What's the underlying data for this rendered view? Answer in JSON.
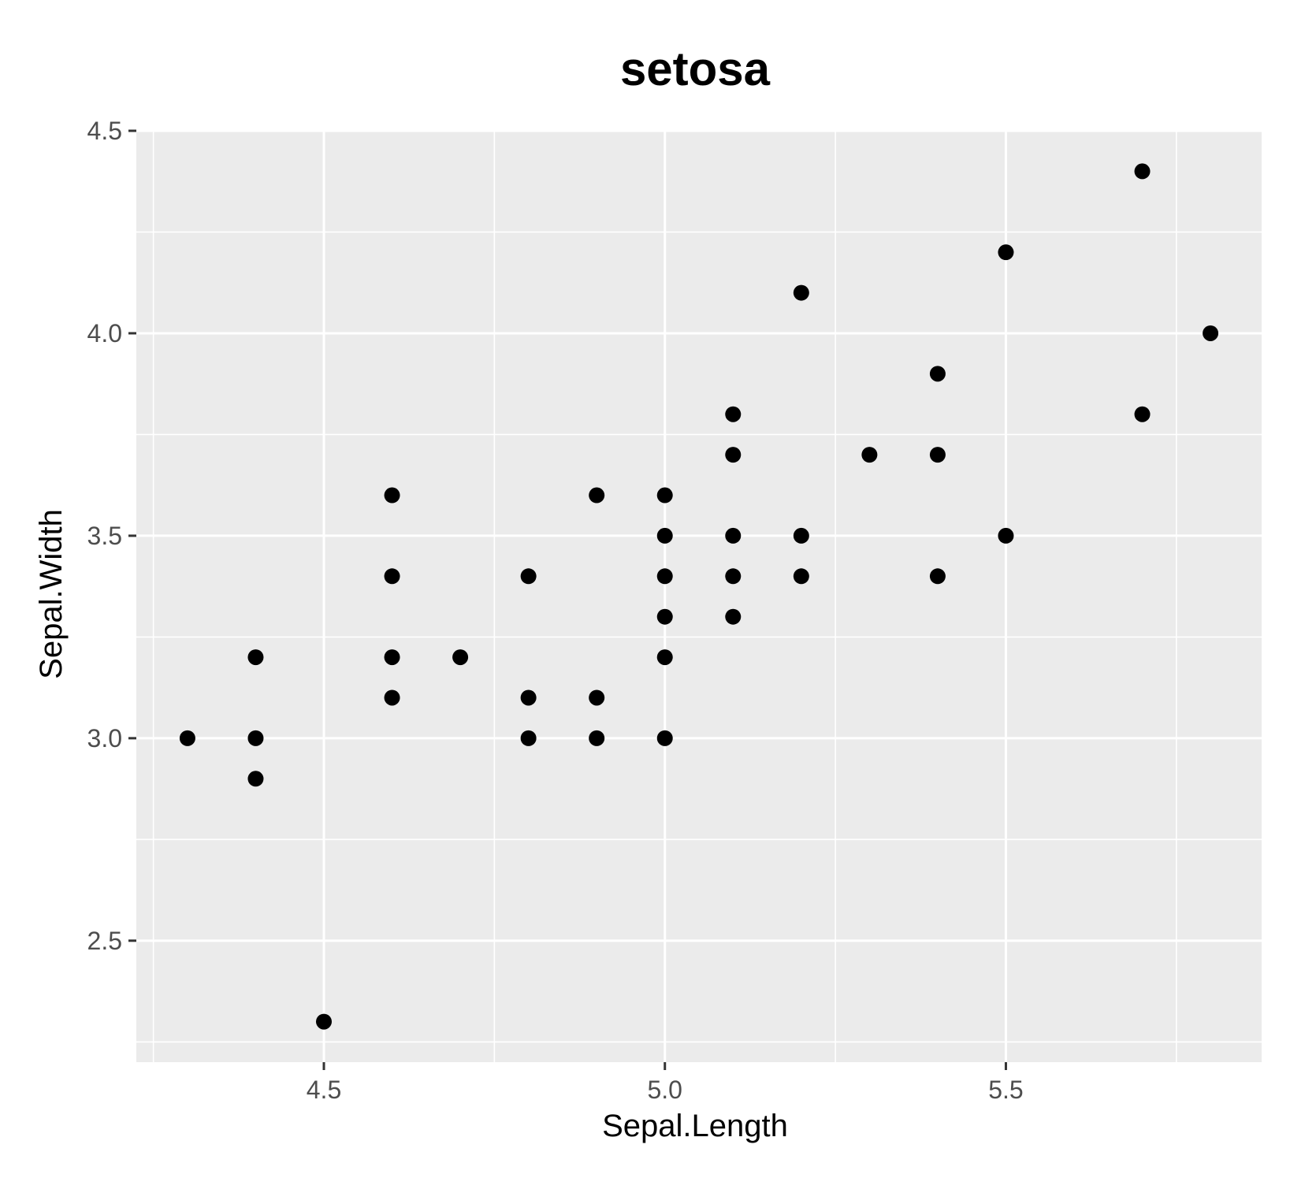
{
  "chart_data": {
    "type": "scatter",
    "title": "setosa",
    "xlabel": "Sepal.Length",
    "ylabel": "Sepal.Width",
    "xlim": [
      4.225,
      5.875
    ],
    "ylim": [
      2.2,
      4.5
    ],
    "x_ticks": [
      4.5,
      5.0,
      5.5
    ],
    "x_tick_labels": [
      "4.5",
      "5.0",
      "5.5"
    ],
    "y_ticks": [
      2.5,
      3.0,
      3.5,
      4.0,
      4.5
    ],
    "y_tick_labels": [
      "2.5",
      "3.0",
      "3.5",
      "4.0",
      "4.5"
    ],
    "x_minor_ticks": [
      4.25,
      4.75,
      5.25,
      5.75
    ],
    "y_minor_ticks": [
      2.25,
      2.75,
      3.25,
      3.75,
      4.25
    ],
    "grid": true,
    "legend": "none",
    "point_color": "#000000",
    "panel_color": "#ebebeb",
    "grid_color": "#ffffff",
    "points": [
      {
        "x": 4.3,
        "y": 3.0
      },
      {
        "x": 4.4,
        "y": 2.9
      },
      {
        "x": 4.4,
        "y": 3.0
      },
      {
        "x": 4.4,
        "y": 3.2
      },
      {
        "x": 4.5,
        "y": 2.3
      },
      {
        "x": 4.6,
        "y": 3.1
      },
      {
        "x": 4.6,
        "y": 3.2
      },
      {
        "x": 4.6,
        "y": 3.4
      },
      {
        "x": 4.6,
        "y": 3.6
      },
      {
        "x": 4.7,
        "y": 3.2
      },
      {
        "x": 4.8,
        "y": 3.0
      },
      {
        "x": 4.8,
        "y": 3.1
      },
      {
        "x": 4.8,
        "y": 3.4
      },
      {
        "x": 4.9,
        "y": 3.0
      },
      {
        "x": 4.9,
        "y": 3.1
      },
      {
        "x": 4.9,
        "y": 3.6
      },
      {
        "x": 5.0,
        "y": 3.0
      },
      {
        "x": 5.0,
        "y": 3.2
      },
      {
        "x": 5.0,
        "y": 3.3
      },
      {
        "x": 5.0,
        "y": 3.4
      },
      {
        "x": 5.0,
        "y": 3.5
      },
      {
        "x": 5.0,
        "y": 3.6
      },
      {
        "x": 5.1,
        "y": 3.3
      },
      {
        "x": 5.1,
        "y": 3.4
      },
      {
        "x": 5.1,
        "y": 3.5
      },
      {
        "x": 5.1,
        "y": 3.7
      },
      {
        "x": 5.1,
        "y": 3.8
      },
      {
        "x": 5.2,
        "y": 3.4
      },
      {
        "x": 5.2,
        "y": 3.5
      },
      {
        "x": 5.2,
        "y": 4.1
      },
      {
        "x": 5.3,
        "y": 3.7
      },
      {
        "x": 5.4,
        "y": 3.4
      },
      {
        "x": 5.4,
        "y": 3.7
      },
      {
        "x": 5.4,
        "y": 3.9
      },
      {
        "x": 5.5,
        "y": 3.5
      },
      {
        "x": 5.5,
        "y": 4.2
      },
      {
        "x": 5.7,
        "y": 3.8
      },
      {
        "x": 5.7,
        "y": 4.4
      },
      {
        "x": 5.8,
        "y": 4.0
      }
    ]
  }
}
